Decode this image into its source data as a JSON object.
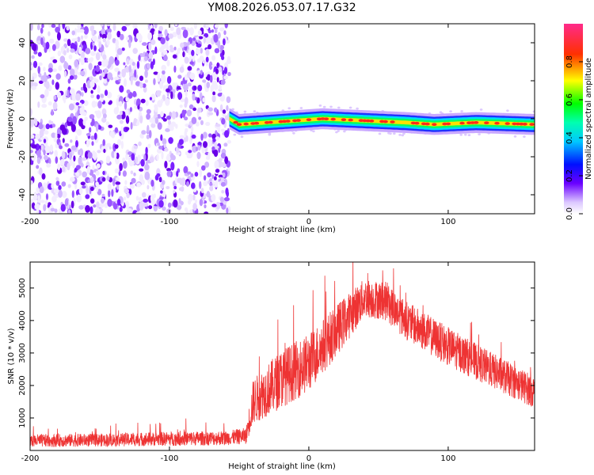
{
  "chart_data": [
    {
      "type": "heatmap",
      "title": "YM08.2026.053.07.17.G32",
      "xlabel": "Height of straight line (km)",
      "ylabel": "Frequency (Hz)",
      "xlim": [
        -200,
        162
      ],
      "ylim": [
        -50,
        50
      ],
      "x_ticks": [
        -200,
        -100,
        0,
        100
      ],
      "y_ticks": [
        -40,
        -20,
        0,
        20,
        40
      ],
      "noise_region_x": [
        -200,
        -57
      ],
      "signal_band": {
        "x_start": -57,
        "x_end": 162,
        "center_frequency_hz": [
          {
            "x": -57,
            "f": 0
          },
          {
            "x": -50,
            "f": -3
          },
          {
            "x": -30,
            "f": -2
          },
          {
            "x": -10,
            "f": -1
          },
          {
            "x": 10,
            "f": 0
          },
          {
            "x": 40,
            "f": -1
          },
          {
            "x": 70,
            "f": -2
          },
          {
            "x": 90,
            "f": -3
          },
          {
            "x": 120,
            "f": -2
          },
          {
            "x": 162,
            "f": -3
          }
        ]
      },
      "colorbar": {
        "label": "Normalized spectral amplitude",
        "ticks": [
          "0.0",
          "0.2",
          "0.4",
          "0.6",
          "0.8"
        ],
        "range": [
          0,
          1
        ]
      }
    },
    {
      "type": "line",
      "title": "",
      "xlabel": "Height of straight line (km)",
      "ylabel": "SNR (10 * v/v)",
      "xlim": [
        -200,
        162
      ],
      "ylim": [
        0,
        5800
      ],
      "x_ticks": [
        -200,
        -100,
        0,
        100
      ],
      "y_ticks": [
        1000,
        2000,
        3000,
        4000,
        5000
      ],
      "color": "#ee3333",
      "envelope": [
        {
          "x": -200,
          "mean": 300,
          "spread": 200
        },
        {
          "x": -150,
          "mean": 320,
          "spread": 200
        },
        {
          "x": -100,
          "mean": 360,
          "spread": 220
        },
        {
          "x": -60,
          "mean": 380,
          "spread": 220
        },
        {
          "x": -45,
          "mean": 450,
          "spread": 250
        },
        {
          "x": -40,
          "mean": 1500,
          "spread": 700
        },
        {
          "x": -20,
          "mean": 2200,
          "spread": 900
        },
        {
          "x": 0,
          "mean": 2700,
          "spread": 900
        },
        {
          "x": 20,
          "mean": 3700,
          "spread": 800
        },
        {
          "x": 40,
          "mean": 4700,
          "spread": 600
        },
        {
          "x": 55,
          "mean": 4600,
          "spread": 600
        },
        {
          "x": 70,
          "mean": 4000,
          "spread": 600
        },
        {
          "x": 100,
          "mean": 3200,
          "spread": 600
        },
        {
          "x": 130,
          "mean": 2500,
          "spread": 550
        },
        {
          "x": 162,
          "mean": 1800,
          "spread": 500
        }
      ]
    }
  ]
}
